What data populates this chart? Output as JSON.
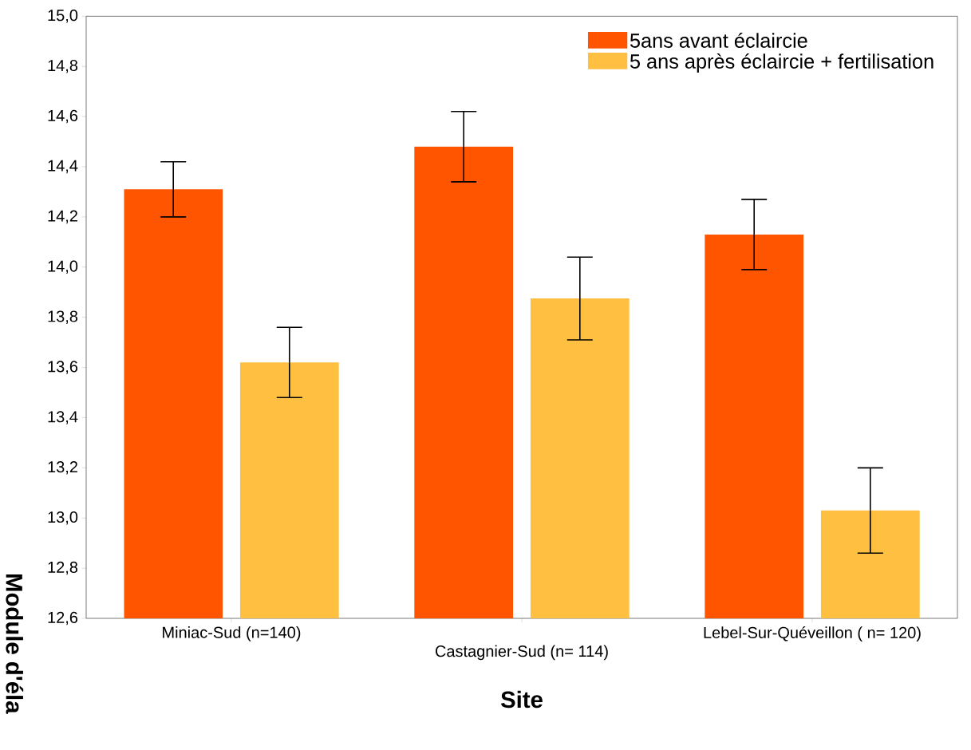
{
  "chart_data": {
    "type": "bar",
    "xlabel": "Site",
    "ylabel": "Module d'éla",
    "categories": [
      "Miniac-Sud (n=140)",
      "Castagnier-Sud (n= 114)",
      "Lebel-Sur-Quéveillon ( n= 120)"
    ],
    "series": [
      {
        "name": "5ans avant éclaircie",
        "color": "#ff5500",
        "values": [
          14.31,
          14.48,
          14.13
        ],
        "errors": [
          0.11,
          0.14,
          0.14
        ]
      },
      {
        "name": "5 ans après éclaircie + fertilisation",
        "color": "#ffbf40",
        "values": [
          13.62,
          13.875,
          13.03
        ],
        "errors": [
          0.14,
          0.165,
          0.17
        ]
      }
    ],
    "ylim": [
      12.6,
      15.0
    ],
    "yticks": [
      {
        "value": 12.6,
        "label": "12,6"
      },
      {
        "value": 12.8,
        "label": "12,8"
      },
      {
        "value": 13.0,
        "label": "13,0"
      },
      {
        "value": 13.2,
        "label": "13,2"
      },
      {
        "value": 13.4,
        "label": "13,4"
      },
      {
        "value": 13.6,
        "label": "13,6"
      },
      {
        "value": 13.8,
        "label": "13,8"
      },
      {
        "value": 14.0,
        "label": "14,0"
      },
      {
        "value": 14.2,
        "label": "14,2"
      },
      {
        "value": 14.4,
        "label": "14,4"
      },
      {
        "value": 14.6,
        "label": "14,6"
      },
      {
        "value": 14.8,
        "label": "14,8"
      },
      {
        "value": 15.0,
        "label": "15,0"
      }
    ],
    "legend": "top right"
  }
}
